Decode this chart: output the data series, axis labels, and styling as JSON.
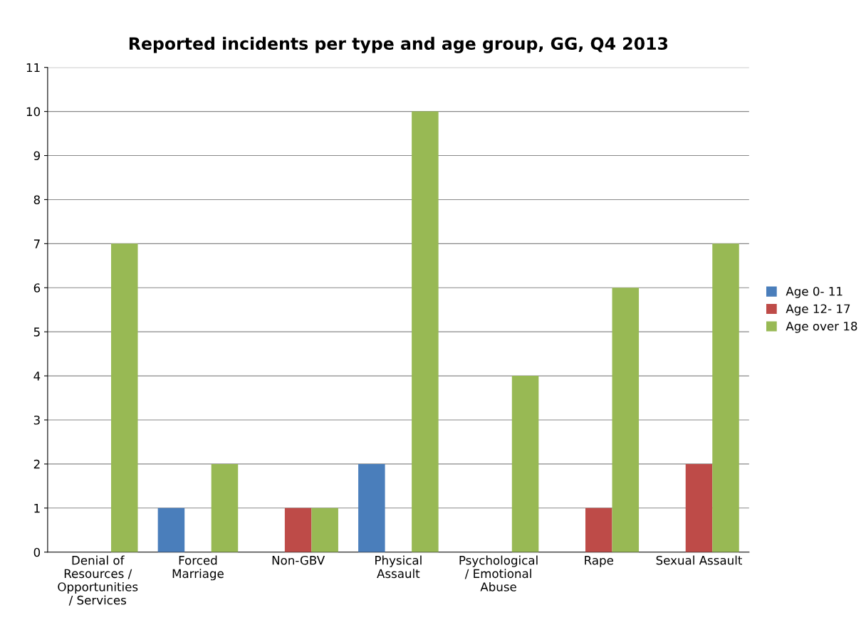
{
  "chart_data": {
    "type": "bar",
    "title": "Reported incidents per type and age group, GG, Q4 2013",
    "categories": [
      "Denial of\nResources /\nOpportunities\n/ Services",
      "Forced\nMarriage",
      "Non-GBV",
      "Physical\nAssault",
      "Psychological\n/ Emotional\nAbuse",
      "Rape",
      "Sexual Assault"
    ],
    "series": [
      {
        "name": "Age 0- 11",
        "color": "#4a7ebb",
        "values": [
          0,
          1,
          0,
          2,
          0,
          0,
          0
        ]
      },
      {
        "name": "Age 12- 17",
        "color": "#be4b48",
        "values": [
          0,
          0,
          1,
          0,
          0,
          1,
          2
        ]
      },
      {
        "name": "Age over 18",
        "color": "#98b954",
        "values": [
          7,
          2,
          1,
          10,
          4,
          6,
          7
        ]
      }
    ],
    "ylim": [
      0,
      11
    ],
    "yticks": [
      0,
      1,
      2,
      3,
      4,
      5,
      6,
      7,
      8,
      9,
      10,
      11
    ],
    "grid": "y",
    "legend": "right"
  }
}
